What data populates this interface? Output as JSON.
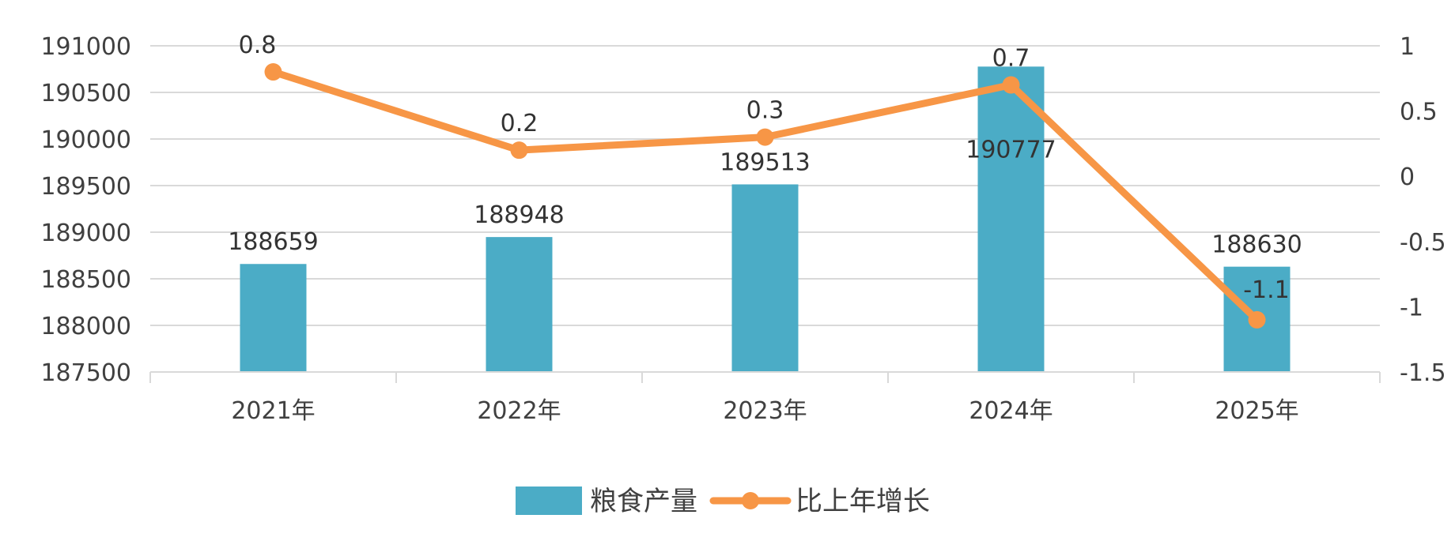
{
  "chart_data": {
    "type": "bar",
    "categories": [
      "2021年",
      "2022年",
      "2023年",
      "2024年",
      "2025年"
    ],
    "series": [
      {
        "name": "粮食产量",
        "type": "bar",
        "axis": "left",
        "values": [
          188659,
          188948,
          189513,
          190777,
          188630
        ],
        "labels": [
          "188659",
          "188948",
          "189513",
          "190777",
          "188630"
        ],
        "color": "#4BACC6"
      },
      {
        "name": "比上年增长",
        "type": "line",
        "axis": "right",
        "values": [
          0.8,
          0.2,
          0.3,
          0.7,
          -1.1
        ],
        "labels": [
          "0.8",
          "0.2",
          "0.3",
          "0.7",
          "-1.1"
        ],
        "color": "#F79646"
      }
    ],
    "y_left": {
      "min": 187500,
      "max": 191000,
      "ticks": [
        "191000",
        "190500",
        "190000",
        "189500",
        "189000",
        "188500",
        "188000",
        "187500"
      ],
      "tick_values": [
        191000,
        190500,
        190000,
        189500,
        189000,
        188500,
        188000,
        187500
      ]
    },
    "y_right": {
      "min": -1.5,
      "max": 1,
      "ticks": [
        "1",
        "0.5",
        "0",
        "-0.5",
        "-1",
        "-1.5"
      ],
      "tick_values": [
        1,
        0.5,
        0,
        -0.5,
        -1,
        -1.5
      ]
    },
    "grid": true,
    "legend_position": "bottom",
    "title": "",
    "xlabel": "",
    "ylabel": ""
  }
}
